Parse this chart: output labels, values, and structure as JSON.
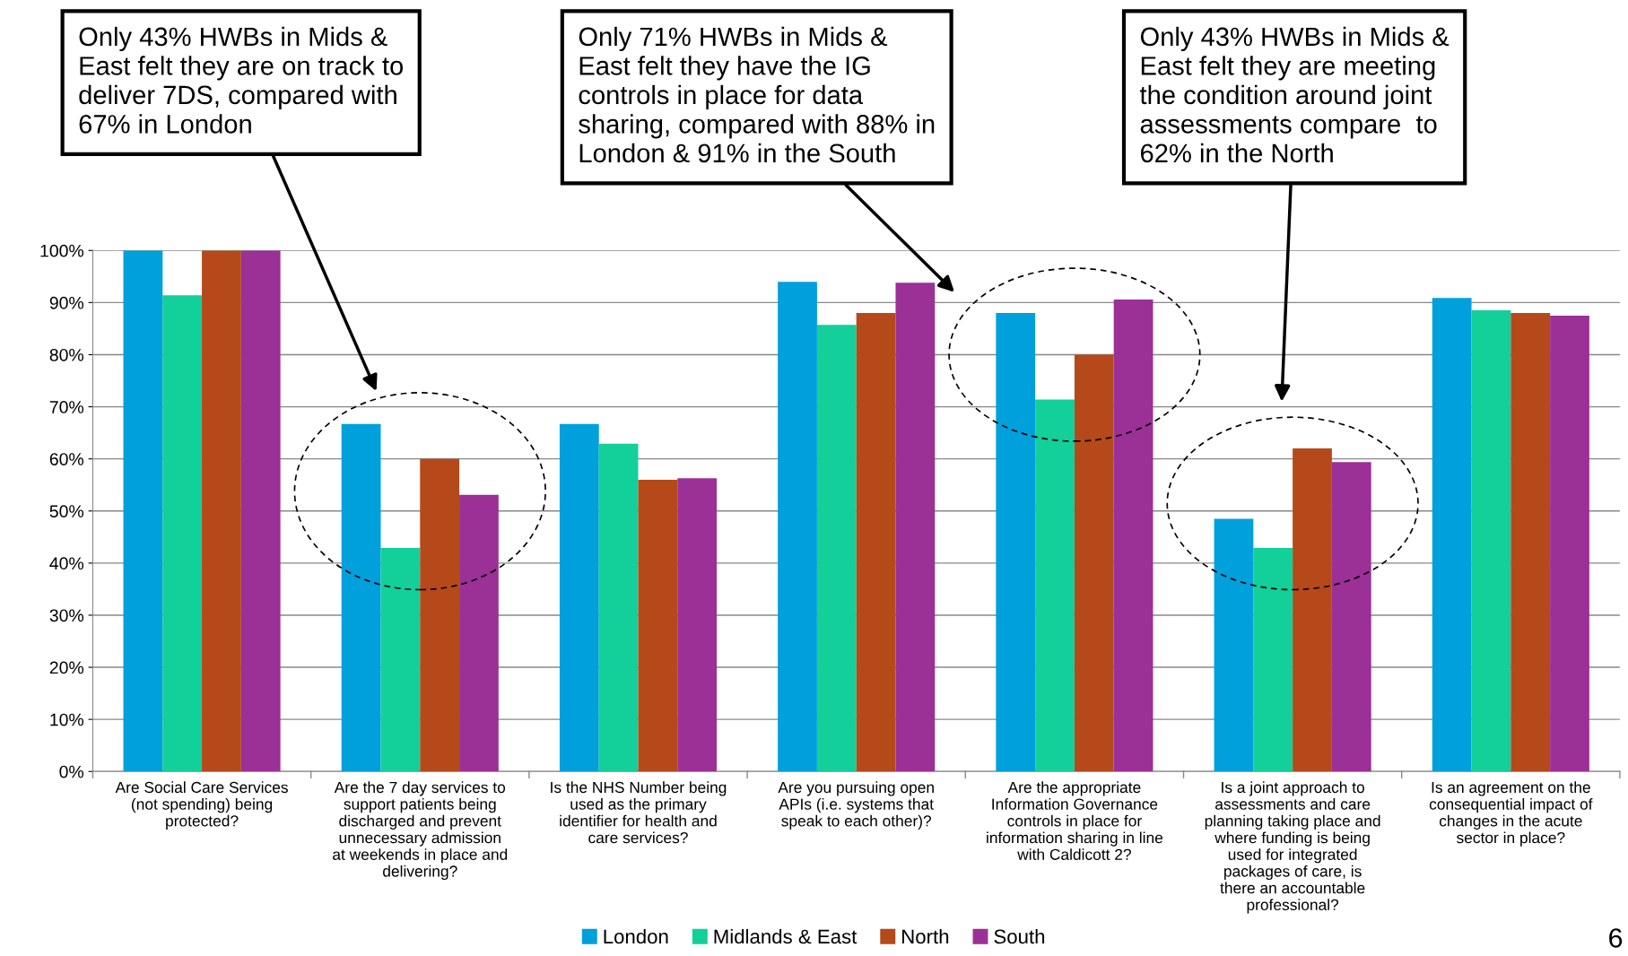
{
  "chart_data": {
    "type": "bar",
    "categories": [
      "Are Social Care Services\n(not spending) being\nprotected?",
      "Are the 7 day services to\nsupport patients being\ndischarged and prevent\nunnecessary admission\nat weekends in place and\ndelivering?",
      "Is the NHS Number being\nused as the primary\nidentifier for health and\ncare services?",
      "Are you pursuing open\nAPIs (i.e. systems that\nspeak to each other)?",
      "Are the appropriate\nInformation Governance\ncontrols in place for\ninformation sharing in line\nwith Caldicott 2?",
      "Is a joint approach to\nassessments and care\nplanning taking place and\nwhere funding is being\nused for integrated\npackages of care, is\nthere an accountable\nprofessional?",
      "Is an agreement on the\nconsequential impact of\nchanges in the acute\nsector in place?"
    ],
    "series": [
      {
        "name": "London",
        "color": "#00a0dc",
        "values": [
          100,
          66.7,
          66.7,
          94.0,
          88.0,
          48.5,
          90.9
        ]
      },
      {
        "name": "Midlands & East",
        "color": "#13cf9a",
        "values": [
          91.4,
          42.9,
          62.9,
          85.7,
          71.4,
          42.9,
          88.5
        ]
      },
      {
        "name": "North",
        "color": "#b5491a",
        "values": [
          100,
          60.0,
          56.0,
          88.0,
          80.0,
          62.0,
          88.0
        ]
      },
      {
        "name": "South",
        "color": "#9b3096",
        "values": [
          100,
          53.1,
          56.3,
          93.8,
          90.6,
          59.4,
          87.5
        ]
      }
    ],
    "ylim": [
      0,
      100
    ],
    "yticks": [
      {
        "value": 0,
        "label": "0%"
      },
      {
        "value": 10,
        "label": "10%"
      },
      {
        "value": 20,
        "label": "20%"
      },
      {
        "value": 30,
        "label": "30%"
      },
      {
        "value": 40,
        "label": "40%"
      },
      {
        "value": 50,
        "label": "50%"
      },
      {
        "value": 60,
        "label": "60%"
      },
      {
        "value": 70,
        "label": "70%"
      },
      {
        "value": 80,
        "label": "80%"
      },
      {
        "value": 90,
        "label": "90%"
      },
      {
        "value": 100,
        "label": "100%"
      }
    ],
    "grid": "y",
    "legend": "bottom",
    "annotations": [
      "Only 43% HWBs in Mids &\nEast felt they are on track to\ndeliver 7DS, compared with\n67% in London",
      "Only 71% HWBs in Mids &\nEast felt they have the IG\ncontrols in place for data\nsharing, compared with 88% in\nLondon & 91% in the South",
      "Only 43% HWBs in Mids &\nEast felt they are meeting\nthe condition around joint\nassessments compare  to\n62% in the North",
      "6"
    ]
  }
}
